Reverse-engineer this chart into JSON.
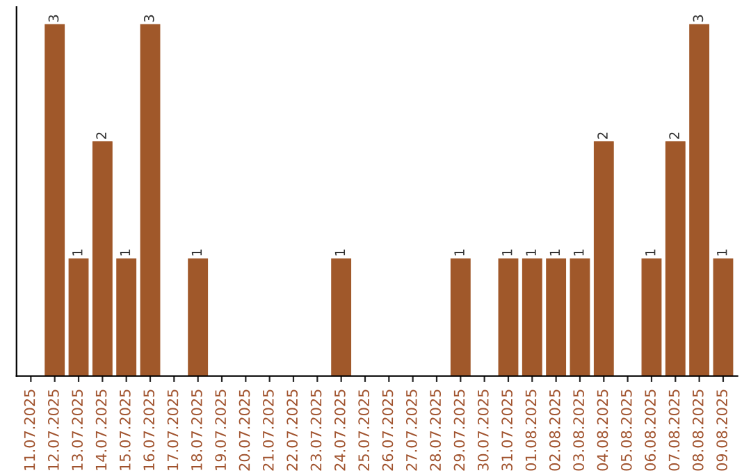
{
  "chart_data": {
    "type": "bar",
    "categories": [
      "11.07.2025",
      "12.07.2025",
      "13.07.2025",
      "14.07.2025",
      "15.07.2025",
      "16.07.2025",
      "17.07.2025",
      "18.07.2025",
      "19.07.2025",
      "20.07.2025",
      "21.07.2025",
      "22.07.2025",
      "23.07.2025",
      "24.07.2025",
      "25.07.2025",
      "26.07.2025",
      "27.07.2025",
      "28.07.2025",
      "29.07.2025",
      "30.07.2025",
      "31.07.2025",
      "01.08.2025",
      "02.08.2025",
      "03.08.2025",
      "04.08.2025",
      "05.08.2025",
      "06.08.2025",
      "07.08.2025",
      "08.08.2025",
      "09.08.2025"
    ],
    "values": [
      0,
      3,
      1,
      2,
      1,
      3,
      0,
      1,
      0,
      0,
      0,
      0,
      0,
      1,
      0,
      0,
      0,
      0,
      1,
      0,
      1,
      1,
      1,
      1,
      2,
      0,
      1,
      2,
      3,
      1
    ],
    "value_labels": [
      null,
      "3",
      "1",
      "2",
      "1",
      "3",
      null,
      "1",
      null,
      null,
      null,
      null,
      null,
      "1",
      null,
      null,
      null,
      null,
      "1",
      null,
      "1",
      "1",
      "1",
      "1",
      "2",
      null,
      "1",
      "2",
      "3",
      "1"
    ],
    "color": "#a0582a",
    "grid": false,
    "legend": false,
    "tick_labels": "x"
  }
}
